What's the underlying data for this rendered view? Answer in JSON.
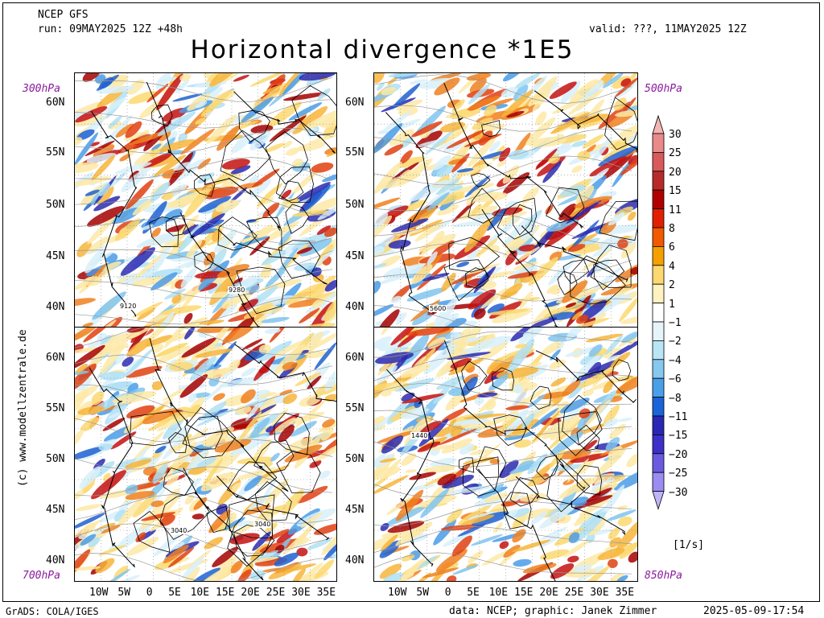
{
  "header": {
    "model": "NCEP GFS",
    "run": "run: 09MAY2025 12Z +48h",
    "valid": "valid: ???, 11MAY2025 12Z",
    "title": "Horizontal divergence *1E5"
  },
  "panels": [
    {
      "level": "300hPa",
      "contour_labels": [
        "9120",
        "9280"
      ]
    },
    {
      "level": "500hPa",
      "contour_labels": [
        "5600"
      ]
    },
    {
      "level": "700hPa",
      "contour_labels": [
        "3040",
        "3040"
      ]
    },
    {
      "level": "850hPa",
      "contour_labels": [
        "1440"
      ]
    }
  ],
  "lat_ticks": [
    "60N",
    "55N",
    "50N",
    "45N",
    "40N"
  ],
  "lon_ticks": [
    "10W",
    "5W",
    "0",
    "5E",
    "10E",
    "15E",
    "20E",
    "25E",
    "30E",
    "35E"
  ],
  "colorbar": {
    "labels": [
      "30",
      "25",
      "20",
      "15",
      "11",
      "8",
      "6",
      "4",
      "2",
      "1",
      "-1",
      "-2",
      "-4",
      "-6",
      "-8",
      "-11",
      "-15",
      "-20",
      "-25",
      "-30"
    ],
    "colors": [
      "#f4b4b4",
      "#e88a8a",
      "#d95a5a",
      "#b82a2a",
      "#b00000",
      "#e02000",
      "#f05a00",
      "#f4a000",
      "#fcd870",
      "#fdf2c0",
      "#ffffff",
      "#e6f4fa",
      "#b8e6f4",
      "#86c8ee",
      "#4aa0e8",
      "#1a64d8",
      "#2828b4",
      "#3c30c8",
      "#6a5ae0",
      "#9a8cf2",
      "#c0b4f8"
    ],
    "unit": "[1/s]"
  },
  "credit": "(c) www.modellzentrale.de",
  "footer": {
    "left": "GrADS: COLA/IGES",
    "middle": "data: NCEP; graphic: Janek Zimmer",
    "right": "2025-05-09-17:54"
  }
}
